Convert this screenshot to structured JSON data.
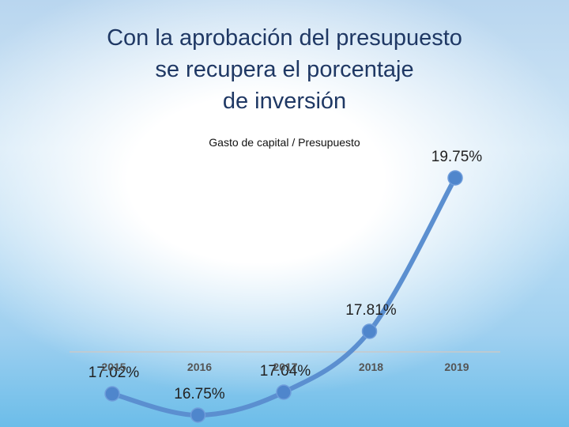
{
  "title_lines": [
    "Con la aprobación del presupuesto",
    "se recupera el porcentaje",
    "de inversión"
  ],
  "chart_data": {
    "type": "line",
    "title": "Gasto de capital / Presupuesto",
    "categories": [
      "2015",
      "2016",
      "2017",
      "2018",
      "2019"
    ],
    "series": [
      {
        "values": [
          17.02,
          16.75,
          17.04,
          17.81,
          19.75
        ]
      }
    ],
    "data_labels": [
      "17.02%",
      "16.75%",
      "17.04%",
      "17.81%",
      "19.75%"
    ],
    "ylim": [
      15.7,
      20.3
    ],
    "grid": false,
    "line_color": "#5b8fd0",
    "marker_color": "#4f86cc",
    "axis_color": "#c9c9c9"
  }
}
